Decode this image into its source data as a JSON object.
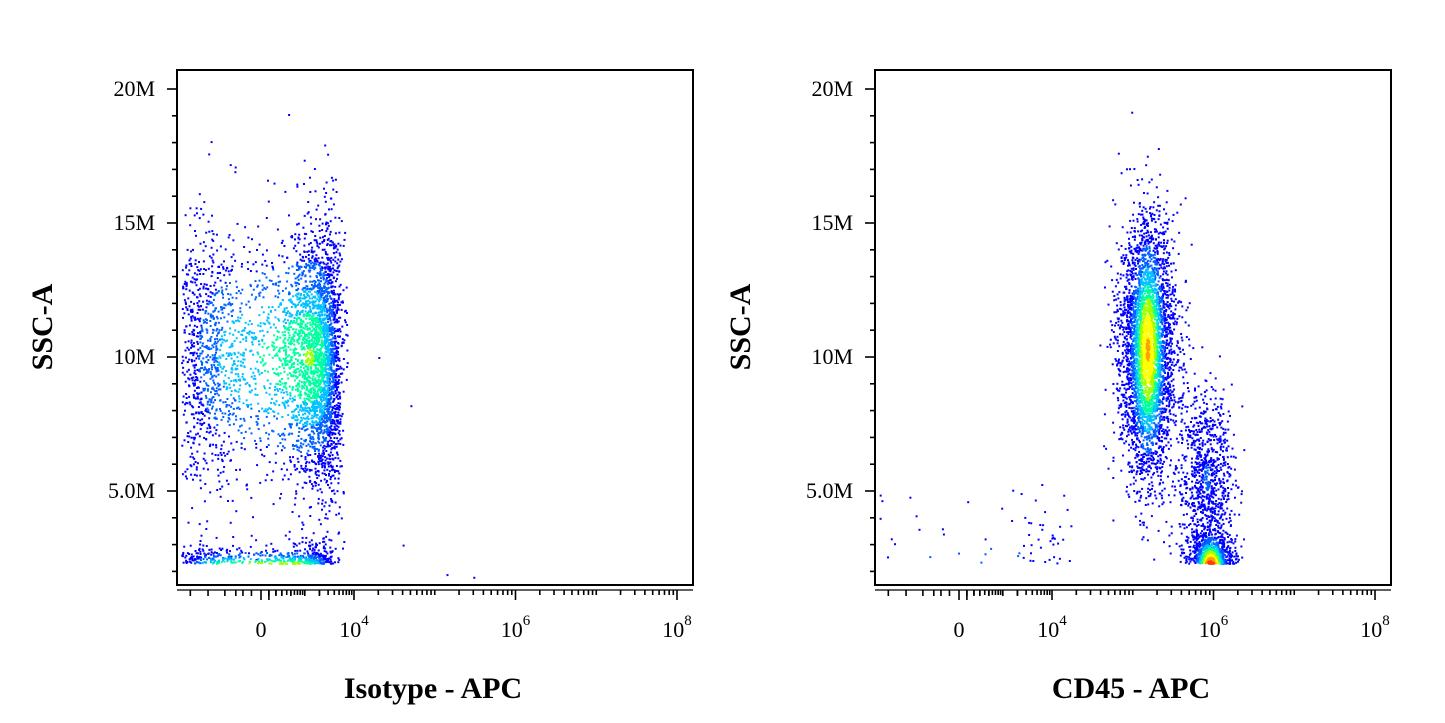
{
  "chart_data": [
    {
      "type": "scatter",
      "subtype": "flow-cytometry density dot plot",
      "xlabel": "Isotype - APC",
      "ylabel": "SSC-A",
      "x_scale": "biexponential",
      "x_ticks": [
        {
          "value": 0,
          "label": "0"
        },
        {
          "value": 10000,
          "label": "10",
          "exp": "4"
        },
        {
          "value": 1000000,
          "label": "10",
          "exp": "6"
        },
        {
          "value": 100000000,
          "label": "10",
          "exp": "8"
        }
      ],
      "y_ticks": [
        {
          "value": 5000000,
          "label": "5.0M"
        },
        {
          "value": 10000000,
          "label": "10M"
        },
        {
          "value": 15000000,
          "label": "15M"
        },
        {
          "value": 20000000,
          "label": "20M"
        }
      ],
      "ylim": [
        0,
        20000000
      ],
      "color_scale": [
        "#0000ff",
        "#00c0ff",
        "#00ff80",
        "#ffff00",
        "#ff8000",
        "#ff0000"
      ],
      "populations": [
        {
          "x_center": 300,
          "x_spread": 1500,
          "y_center": 1800000,
          "y_spread": 500000,
          "count": 3200,
          "peak_color": "#ff0000"
        },
        {
          "x_center": 1200,
          "x_spread": 1800,
          "y_center": 10000000,
          "y_spread": 2400000,
          "count": 4200,
          "peak_color": "#00ff80"
        }
      ],
      "outliers": [
        {
          "x": 20000,
          "y": 10000000
        },
        {
          "x": 50000,
          "y": 8200000
        },
        {
          "x": 40000,
          "y": 3000000
        },
        {
          "x": 140000,
          "y": 1900000
        },
        {
          "x": 300000,
          "y": 1800000
        }
      ]
    },
    {
      "type": "scatter",
      "subtype": "flow-cytometry density dot plot",
      "xlabel": "CD45 - APC",
      "ylabel": "SSC-A",
      "x_scale": "biexponential",
      "x_ticks": [
        {
          "value": 0,
          "label": "0"
        },
        {
          "value": 10000,
          "label": "10",
          "exp": "4"
        },
        {
          "value": 1000000,
          "label": "10",
          "exp": "6"
        },
        {
          "value": 100000000,
          "label": "10",
          "exp": "8"
        }
      ],
      "y_ticks": [
        {
          "value": 5000000,
          "label": "5.0M"
        },
        {
          "value": 10000000,
          "label": "10M"
        },
        {
          "value": 15000000,
          "label": "15M"
        },
        {
          "value": 20000000,
          "label": "20M"
        }
      ],
      "ylim": [
        0,
        20000000
      ],
      "color_scale": [
        "#0000ff",
        "#00c0ff",
        "#00ff80",
        "#ffff00",
        "#ff8000",
        "#ff0000"
      ],
      "populations": [
        {
          "x_center": 150000,
          "x_spread_log": 0.12,
          "y_center": 10300000,
          "y_spread": 2300000,
          "count": 3800,
          "peak_color": "#ffff00"
        },
        {
          "x_center": 900000,
          "x_spread_log": 0.1,
          "y_center": 2000000,
          "y_spread": 700000,
          "count": 2200,
          "peak_color": "#ff0000"
        },
        {
          "x_center": 800000,
          "x_spread_log": 0.12,
          "y_center": 5500000,
          "y_spread": 1600000,
          "count": 900,
          "peak_color": "#0000ff"
        },
        {
          "x_center": 300,
          "x_spread": 6000,
          "y_center": 2600000,
          "y_spread": 1200000,
          "count": 160,
          "peak_color": "#0000ff"
        }
      ]
    }
  ]
}
